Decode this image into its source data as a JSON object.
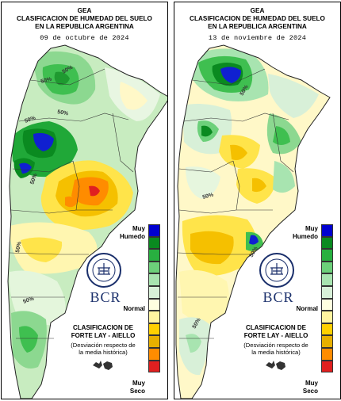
{
  "panels": [
    {
      "title_org": "GEA",
      "title_line1": "CLASIFICACION DE HUMEDAD DEL SUELO",
      "title_line2": "EN LA REPUBLICA ARGENTINA",
      "date": "09 de octubre de 2024",
      "contour_labels": [
        "50%",
        "50%",
        "50%",
        "50%",
        "50%",
        "50%",
        "50%"
      ]
    },
    {
      "title_org": "GEA",
      "title_line1": "CLASIFICACION DE HUMEDAD DEL SUELO",
      "title_line2": "EN LA REPUBLICA ARGENTINA",
      "date": "13 de noviembre de 2024",
      "contour_labels": [
        "50%",
        "50%",
        "50%",
        "50%"
      ]
    }
  ],
  "legend": {
    "top_label_1": "Muy",
    "top_label_2": "Humedo",
    "mid_label": "Normal",
    "bottom_label_1": "Muy",
    "bottom_label_2": "Seco",
    "classes": [
      "#0000d0",
      "#0a8a20",
      "#28b040",
      "#6cd07a",
      "#a8e4b0",
      "#d8f0d8",
      "#ffffe0",
      "#fff4a0",
      "#ffd000",
      "#e8b000",
      "#ff8c00",
      "#e02020"
    ]
  },
  "classification": {
    "line1": "CLASIFICACION DE",
    "line2": "FORTE LAY - AIELLO",
    "note1": "(Desviación respecto de",
    "note2": "la media histórica)"
  },
  "logo": {
    "text": "BCR"
  }
}
